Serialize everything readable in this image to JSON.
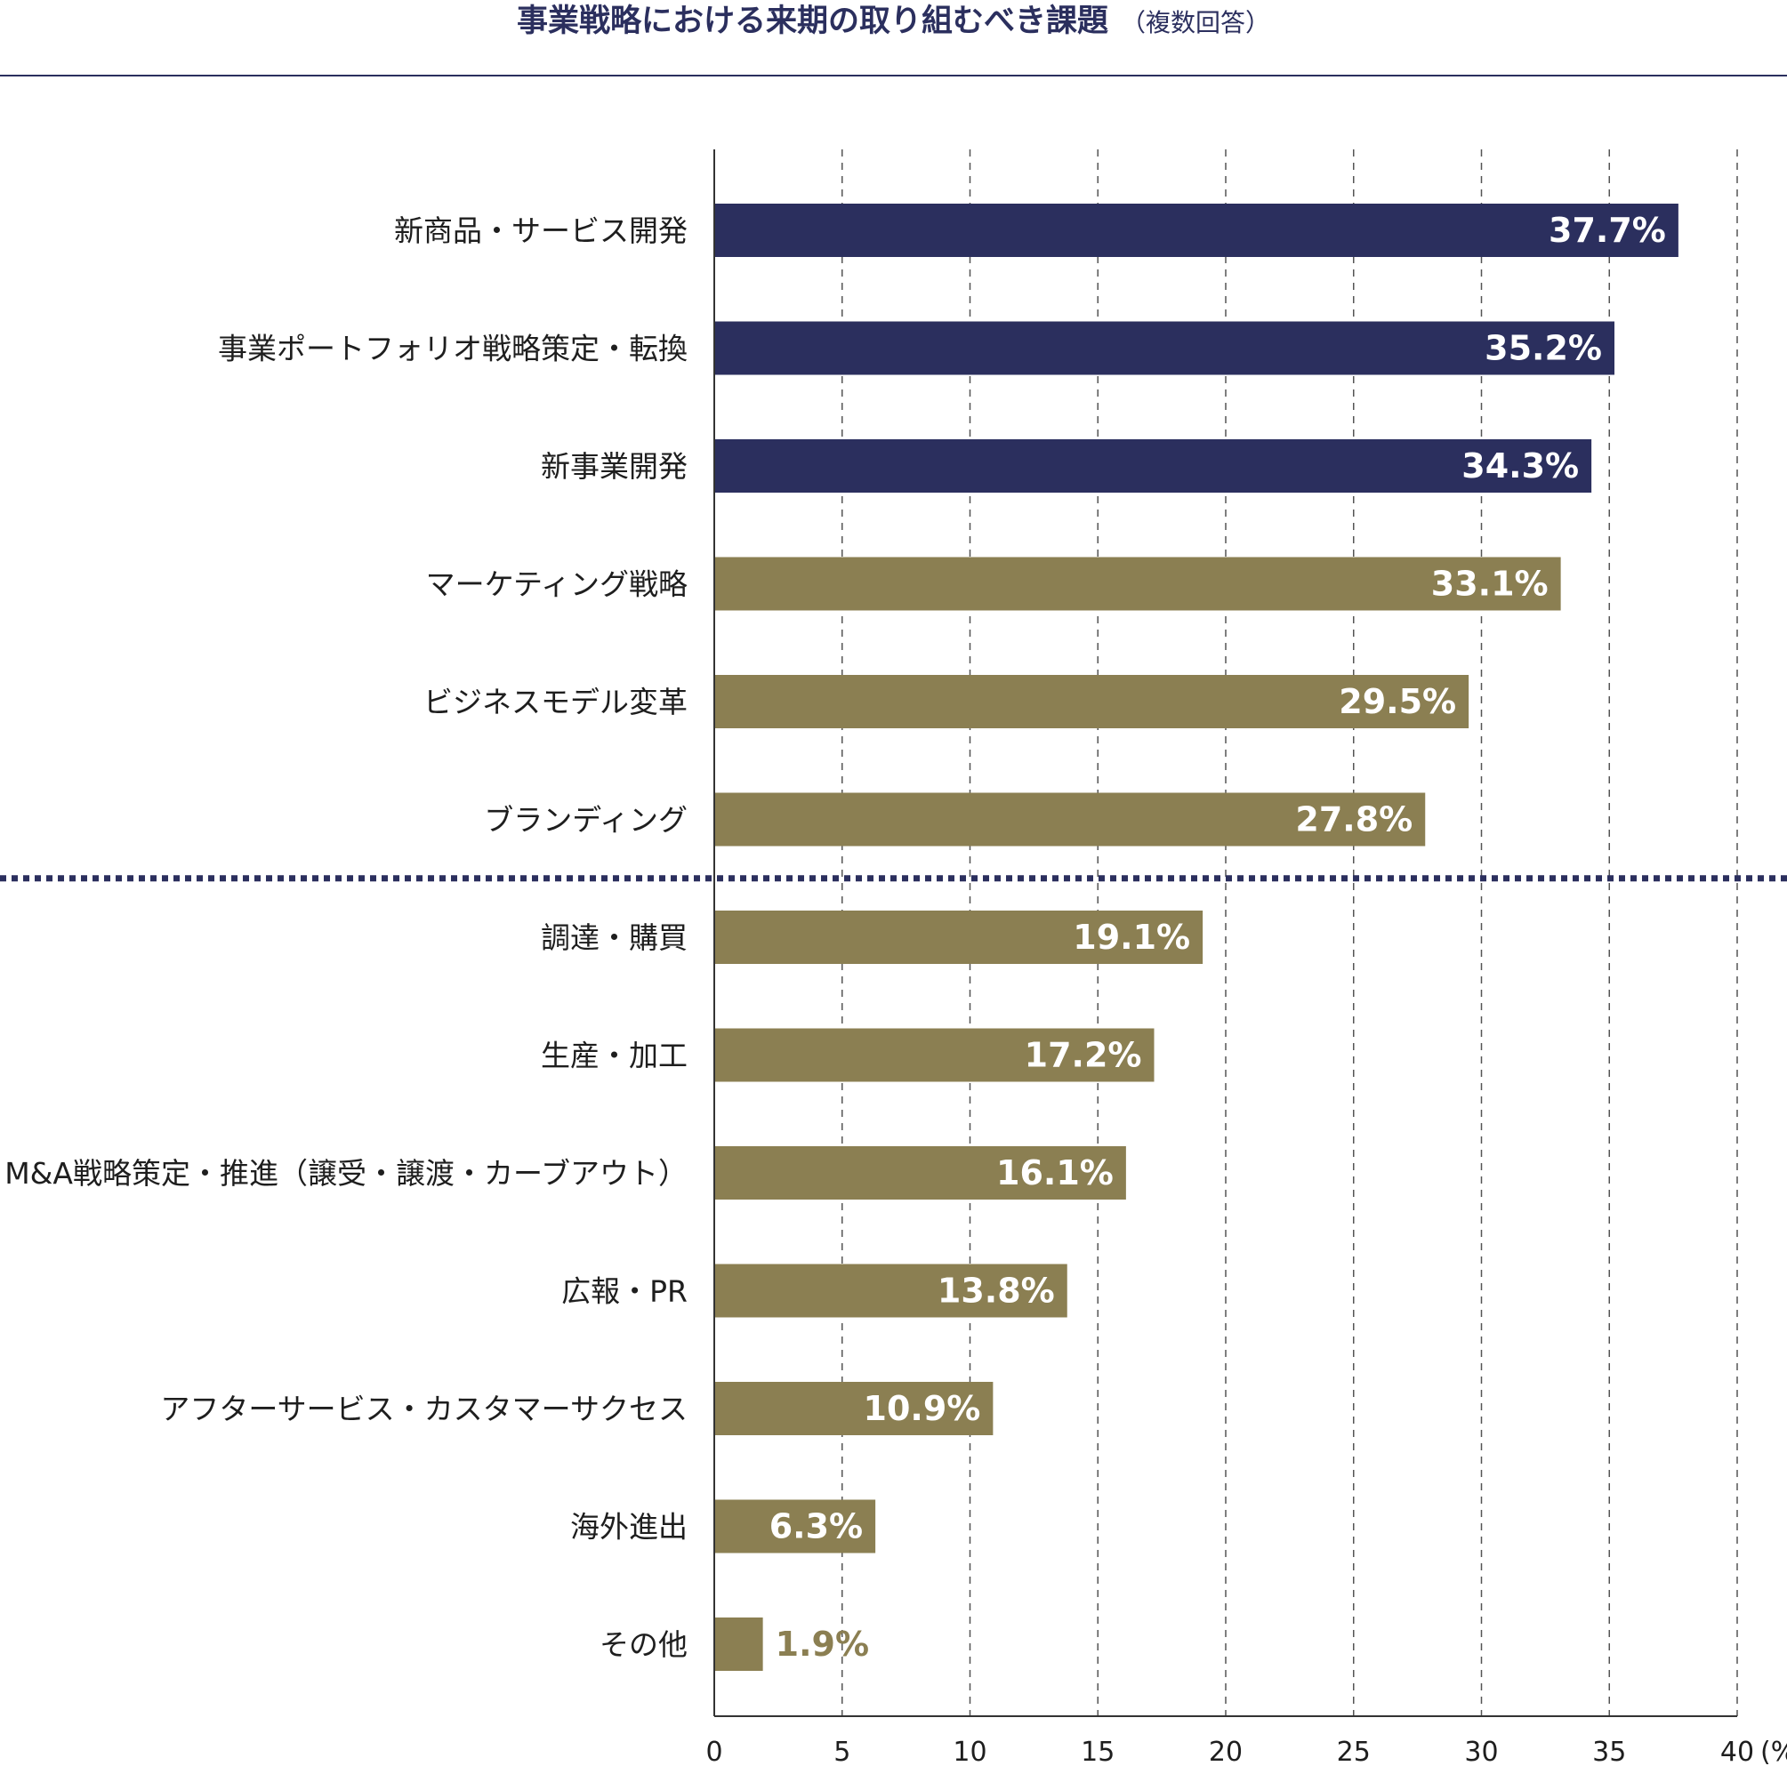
{
  "chart_data": {
    "type": "bar",
    "orientation": "horizontal",
    "title": "事業戦略における来期の取り組むべき課題",
    "subtitle": "（複数回答）",
    "xlabel": "(%)",
    "xlim": [
      0,
      40
    ],
    "x_ticks": [
      0,
      5,
      10,
      15,
      20,
      25,
      30,
      35,
      40
    ],
    "grid": true,
    "categories": [
      "新商品・サービス開発",
      "事業ポートフォリオ戦略策定・転換",
      "新事業開発",
      "マーケティング戦略",
      "ビジネスモデル変革",
      "ブランディング",
      "調達・購買",
      "生産・加工",
      "M&A戦略策定・推進（譲受・譲渡・カーブアウト）",
      "広報・PR",
      "アフターサービス・カスタマーサクセス",
      "海外進出",
      "その他"
    ],
    "values": [
      37.7,
      35.2,
      34.3,
      33.1,
      29.5,
      27.8,
      19.1,
      17.2,
      16.1,
      13.8,
      10.9,
      6.3,
      1.9
    ],
    "value_labels": [
      "37.7%",
      "35.2%",
      "34.3%",
      "33.1%",
      "29.5%",
      "27.8%",
      "19.1%",
      "17.2%",
      "16.1%",
      "13.8%",
      "10.9%",
      "6.3%",
      "1.9%"
    ],
    "bar_colors": [
      "#2b2f5e",
      "#2b2f5e",
      "#2b2f5e",
      "#8b7f52",
      "#8b7f52",
      "#8b7f52",
      "#8b7f52",
      "#8b7f52",
      "#8b7f52",
      "#8b7f52",
      "#8b7f52",
      "#8b7f52",
      "#8b7f52"
    ],
    "separator_after_index": 5
  },
  "colors": {
    "navy": "#2b2f5e",
    "olive": "#8b7f52",
    "label_inside": "#ffffff",
    "grid": "#555555"
  }
}
